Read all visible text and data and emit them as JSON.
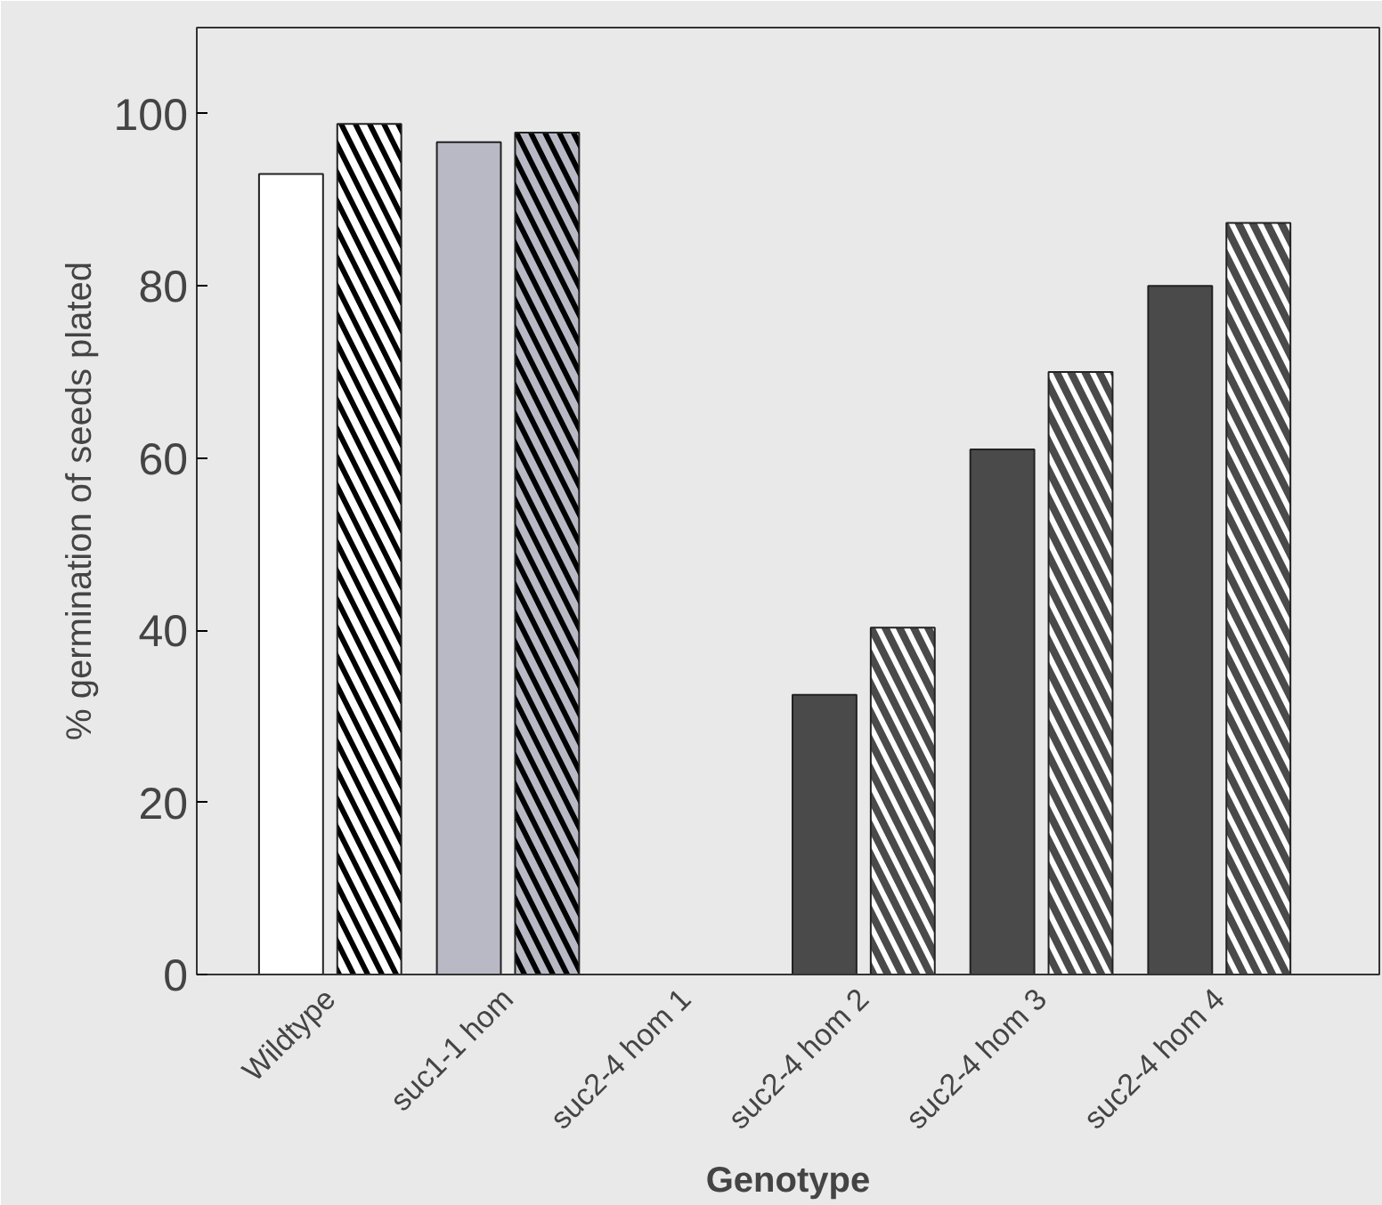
{
  "chart_data": {
    "type": "bar",
    "xlabel": "Genotype",
    "ylabel": "% germination of seeds plated",
    "categories": [
      "Wildtype",
      "suc1-1 hom",
      "suc2-4 hom 1",
      "suc2-4 hom 2",
      "suc2-4 hom 3",
      "suc2-4 hom 4"
    ],
    "series": [
      {
        "colors": [
          "#ffffff",
          "#b9b9c6",
          "#4a4a4a",
          "#4a4a4a",
          "#4a4a4a",
          "#4a4a4a"
        ],
        "values": [
          93,
          96.7,
          null,
          32.5,
          61,
          80
        ]
      },
      {
        "colors": [
          "#ffffff",
          "#b9b9c6",
          "#4a4a4a",
          "#4a4a4a",
          "#4a4a4a",
          "#4a4a4a"
        ],
        "values": [
          98.8,
          97.8,
          null,
          40.3,
          70,
          87.3
        ]
      }
    ],
    "ylim": [
      0,
      110
    ],
    "yticks": [
      0,
      20,
      40,
      60,
      80,
      100
    ],
    "grid": false
  }
}
